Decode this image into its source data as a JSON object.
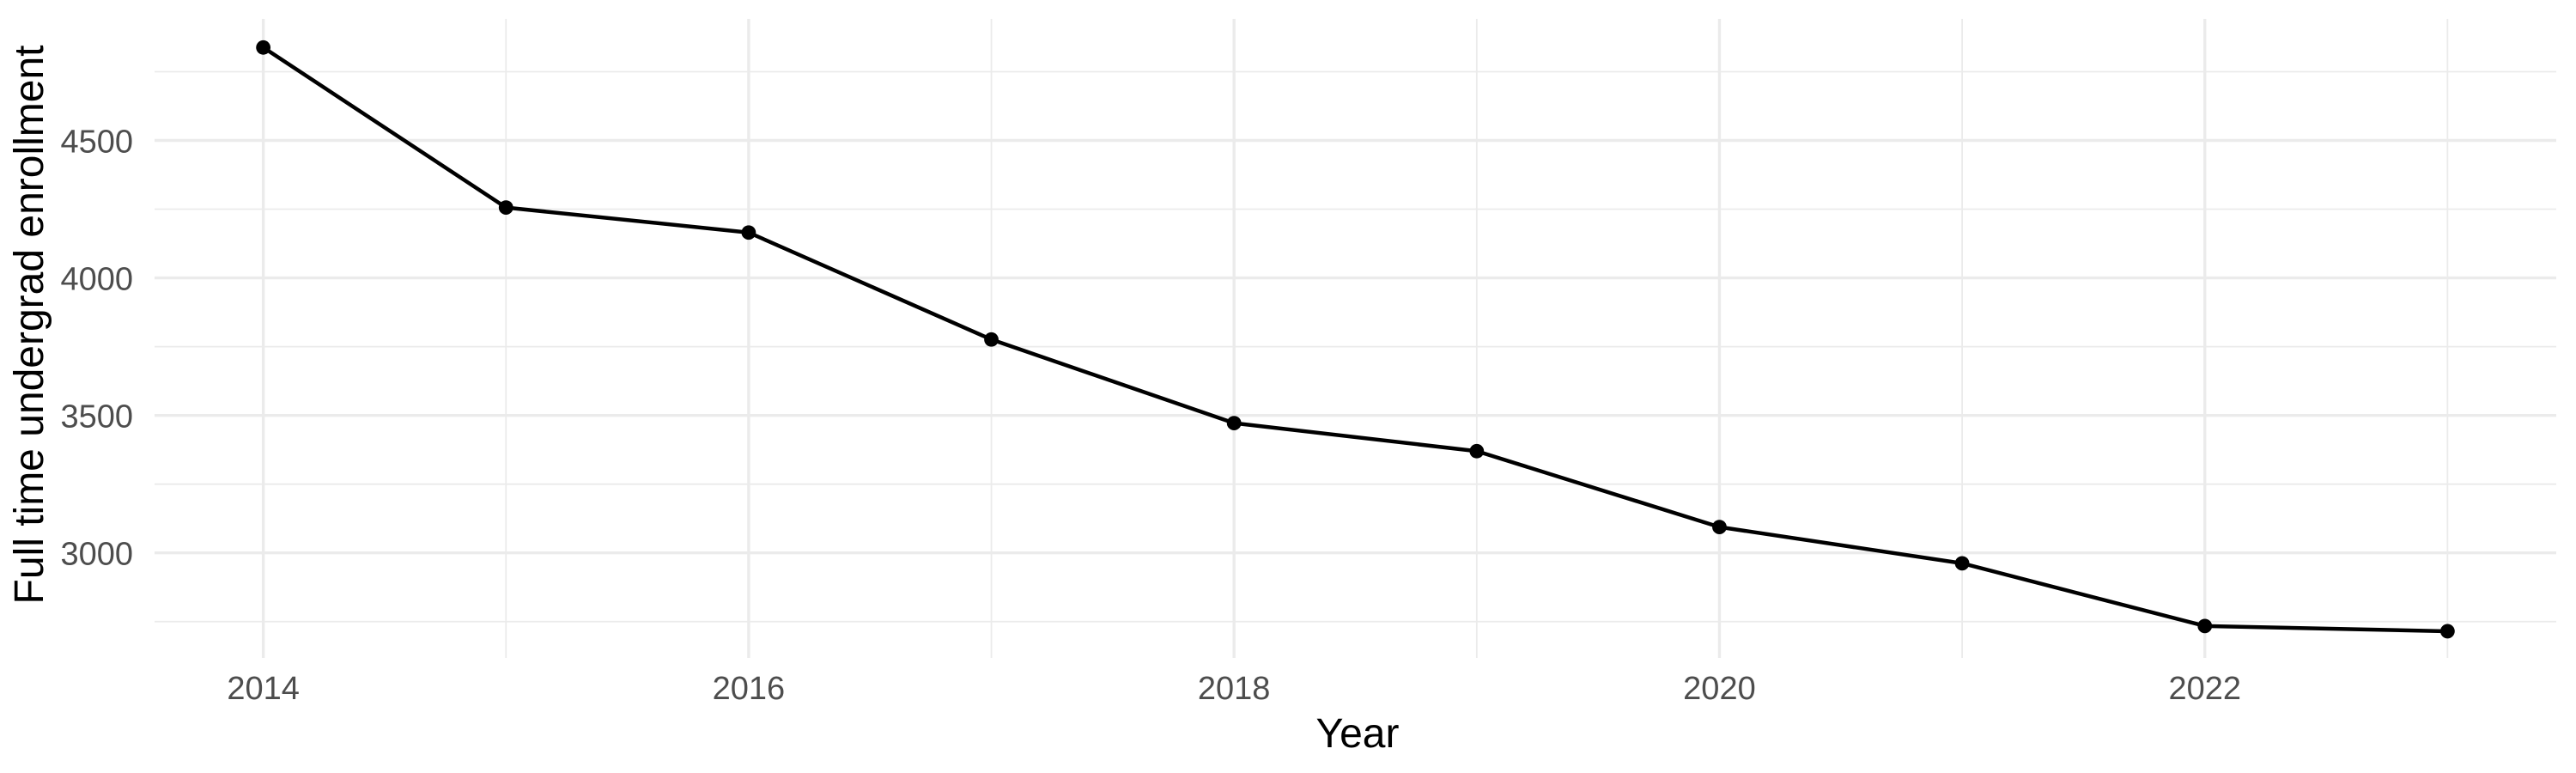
{
  "chart_data": {
    "type": "line",
    "title": "",
    "xlabel": "Year",
    "ylabel": "Full time undergrad enrollment",
    "x": [
      2014,
      2015,
      2016,
      2017,
      2018,
      2019,
      2020,
      2021,
      2022,
      2023
    ],
    "series": [
      {
        "name": "Full time undergrad enrollment",
        "values": [
          4838,
          4256,
          4165,
          3776,
          3472,
          3370,
          3094,
          2962,
          2734,
          2715
        ]
      }
    ],
    "x_ticks": [
      2014,
      2016,
      2018,
      2020,
      2022
    ],
    "y_ticks": [
      3000,
      3500,
      4000,
      4500
    ],
    "x_minor_gridlines": [
      2015,
      2017,
      2019,
      2021,
      2023
    ],
    "y_minor_gridlines": [
      2750,
      3250,
      3750,
      4250,
      4750
    ],
    "xlim": [
      2013.552,
      2023.448
    ],
    "ylim": [
      2618,
      4942
    ],
    "grid": "on",
    "legend": "none",
    "marker": "filled-circle",
    "colors": {
      "background": "#FFFFFF",
      "gridline": "#EBEBEB",
      "line": "#000000",
      "point": "#000000",
      "tick_label": "#4D4D4D",
      "axis_title": "#000000"
    }
  }
}
